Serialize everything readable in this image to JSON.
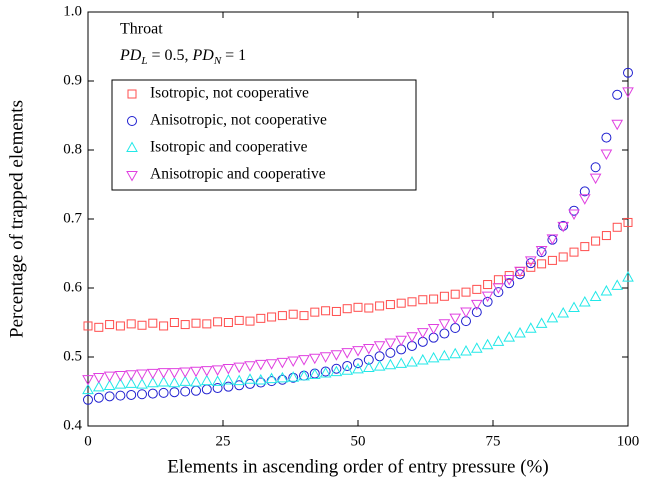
{
  "chart_data": {
    "type": "scatter",
    "xlabel": "Elements in ascending order of entry pressure (%)",
    "ylabel": "Percentage of trapped elements",
    "annotation": {
      "line1": "Throat",
      "parts": [
        "PD",
        "L",
        " = 0.5, ",
        "PD",
        "N",
        " = 1"
      ]
    },
    "xlim": [
      0,
      100
    ],
    "xticks": [
      0,
      25,
      50,
      75,
      100
    ],
    "ylim": [
      0.4,
      1
    ],
    "yticks": [
      0.4,
      0.5,
      0.6,
      0.7,
      0.8,
      0.9,
      {
        "value": 1,
        "label": "1.0"
      }
    ],
    "x": [
      0,
      2,
      4,
      6,
      8,
      10,
      12,
      14,
      16,
      18,
      20,
      22,
      24,
      26,
      28,
      30,
      32,
      34,
      36,
      38,
      40,
      42,
      44,
      46,
      48,
      50,
      52,
      54,
      56,
      58,
      60,
      62,
      64,
      66,
      68,
      70,
      72,
      74,
      76,
      78,
      80,
      82,
      84,
      86,
      88,
      90,
      92,
      94,
      96,
      98,
      100
    ],
    "series": [
      {
        "name": "Isotropic, not cooperative",
        "color": "#ff4d4d",
        "marker": "square",
        "values": [
          0.545,
          0.543,
          0.547,
          0.545,
          0.548,
          0.546,
          0.549,
          0.545,
          0.55,
          0.547,
          0.549,
          0.548,
          0.551,
          0.55,
          0.553,
          0.552,
          0.556,
          0.558,
          0.56,
          0.562,
          0.56,
          0.565,
          0.567,
          0.566,
          0.57,
          0.572,
          0.571,
          0.574,
          0.576,
          0.578,
          0.58,
          0.583,
          0.584,
          0.588,
          0.591,
          0.594,
          0.598,
          0.605,
          0.612,
          0.618,
          0.624,
          0.63,
          0.635,
          0.64,
          0.645,
          0.652,
          0.66,
          0.668,
          0.676,
          0.688,
          0.695
        ]
      },
      {
        "name": "Anisotropic, not cooperative",
        "color": "#2020d0",
        "marker": "circle",
        "values": [
          0.438,
          0.441,
          0.443,
          0.444,
          0.445,
          0.446,
          0.447,
          0.448,
          0.449,
          0.45,
          0.451,
          0.453,
          0.455,
          0.457,
          0.459,
          0.461,
          0.463,
          0.465,
          0.467,
          0.47,
          0.473,
          0.476,
          0.479,
          0.483,
          0.487,
          0.491,
          0.496,
          0.501,
          0.506,
          0.511,
          0.516,
          0.522,
          0.528,
          0.534,
          0.542,
          0.552,
          0.565,
          0.58,
          0.594,
          0.607,
          0.62,
          0.636,
          0.652,
          0.67,
          0.69,
          0.712,
          0.74,
          0.775,
          0.818,
          0.88,
          0.912
        ]
      },
      {
        "name": "Isotropic and cooperative",
        "color": "#22e8e8",
        "marker": "triangle-up",
        "values": [
          0.452,
          0.456,
          0.458,
          0.46,
          0.461,
          0.46,
          0.462,
          0.463,
          0.462,
          0.464,
          0.463,
          0.465,
          0.464,
          0.466,
          0.465,
          0.467,
          0.466,
          0.468,
          0.469,
          0.47,
          0.472,
          0.474,
          0.476,
          0.478,
          0.48,
          0.482,
          0.484,
          0.486,
          0.488,
          0.49,
          0.492,
          0.495,
          0.498,
          0.501,
          0.504,
          0.508,
          0.512,
          0.517,
          0.522,
          0.528,
          0.534,
          0.541,
          0.548,
          0.556,
          0.563,
          0.571,
          0.579,
          0.587,
          0.595,
          0.603,
          0.615
        ]
      },
      {
        "name": "Anisotropic and cooperative",
        "color": "#e040e0",
        "marker": "triangle-down",
        "values": [
          0.468,
          0.471,
          0.473,
          0.474,
          0.475,
          0.476,
          0.477,
          0.478,
          0.478,
          0.479,
          0.48,
          0.481,
          0.482,
          0.484,
          0.486,
          0.488,
          0.49,
          0.491,
          0.493,
          0.495,
          0.497,
          0.499,
          0.501,
          0.504,
          0.507,
          0.51,
          0.513,
          0.517,
          0.521,
          0.525,
          0.53,
          0.536,
          0.542,
          0.549,
          0.557,
          0.566,
          0.577,
          0.589,
          0.601,
          0.613,
          0.625,
          0.64,
          0.655,
          0.672,
          0.69,
          0.708,
          0.73,
          0.76,
          0.795,
          0.838,
          0.885
        ]
      }
    ]
  }
}
